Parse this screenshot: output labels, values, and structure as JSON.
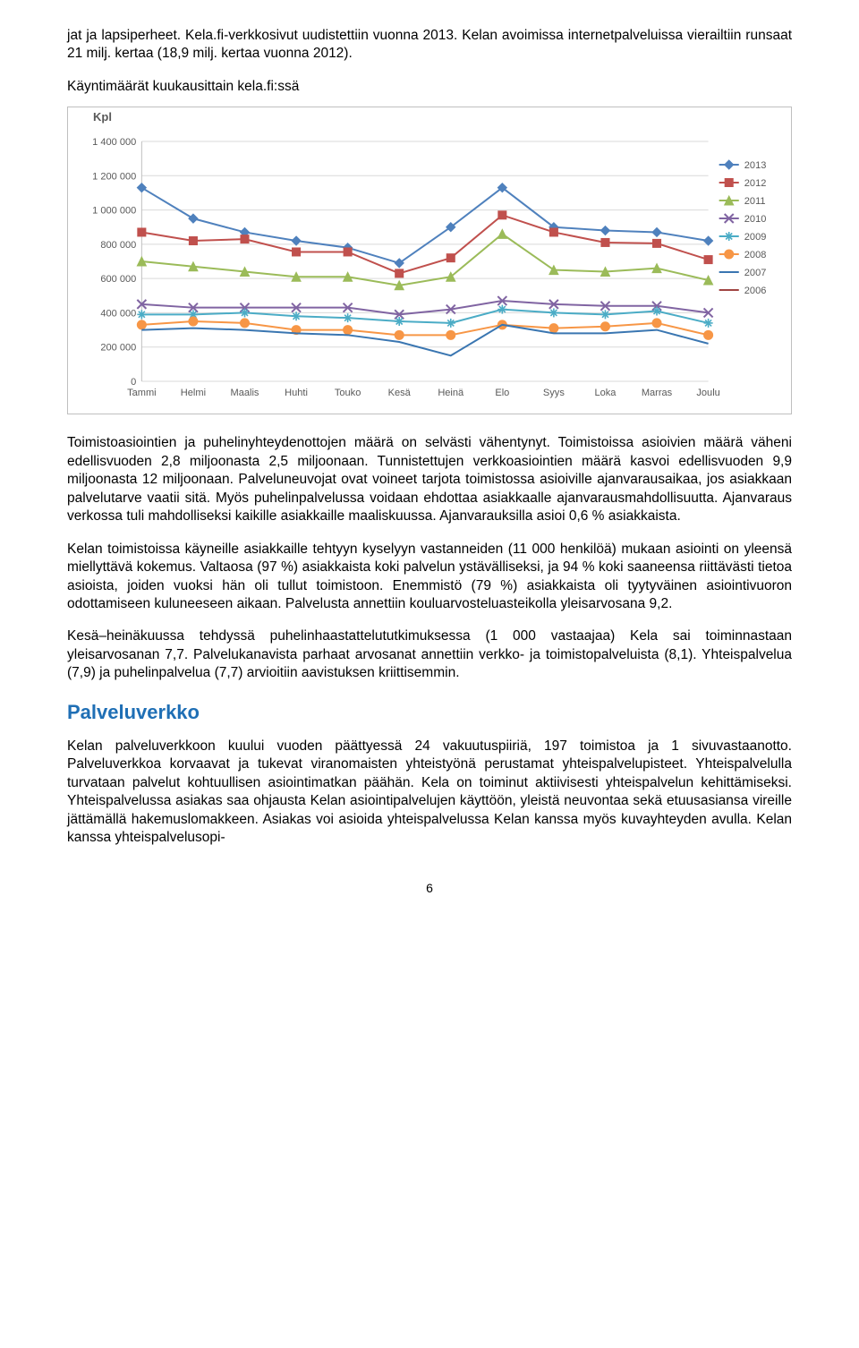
{
  "para1": "jat ja lapsiperheet. Kela.fi-verkkosivut uudistettiin vuonna 2013. Kelan avoimissa internetpalveluissa vierailtiin runsaat 21 milj. kertaa (18,9 milj. kertaa vuonna 2012).",
  "chartTitle": "Käyntimäärät kuukausittain kela.fi:ssä",
  "chart": {
    "type": "line",
    "y_axis_title": "Kpl",
    "xlabels": [
      "Tammi",
      "Helmi",
      "Maalis",
      "Huhti",
      "Touko",
      "Kesä",
      "Heinä",
      "Elo",
      "Syys",
      "Loka",
      "Marras",
      "Joulu"
    ],
    "ylim": [
      0,
      1400000
    ],
    "ytick_step": 200000,
    "yticks_labels": [
      "0",
      "200 000",
      "400 000",
      "600 000",
      "800 000",
      "1 000 000",
      "1 200 000",
      "1 400 000"
    ],
    "grid_color": "#d9d9d9",
    "axis_color": "#bfbfbf",
    "background_color": "#ffffff",
    "label_fontsize": 11,
    "label_color": "#595959",
    "line_width": 2,
    "marker_size": 5,
    "series": [
      {
        "name": "2013",
        "color": "#4f81bd",
        "marker": "diamond",
        "values": [
          1130000,
          950000,
          870000,
          820000,
          780000,
          690000,
          900000,
          1130000,
          900000,
          880000,
          870000,
          820000
        ]
      },
      {
        "name": "2012",
        "color": "#c0504d",
        "marker": "square",
        "values": [
          870000,
          820000,
          830000,
          755000,
          755000,
          630000,
          720000,
          970000,
          870000,
          810000,
          805000,
          710000
        ]
      },
      {
        "name": "2011",
        "color": "#9bbb59",
        "marker": "triangle",
        "values": [
          700000,
          670000,
          640000,
          610000,
          610000,
          560000,
          610000,
          860000,
          650000,
          640000,
          660000,
          590000
        ]
      },
      {
        "name": "2010",
        "color": "#8064a2",
        "marker": "x",
        "values": [
          450000,
          430000,
          430000,
          430000,
          430000,
          390000,
          420000,
          470000,
          450000,
          440000,
          440000,
          400000
        ]
      },
      {
        "name": "2009",
        "color": "#4bacc6",
        "marker": "asterisk",
        "values": [
          390000,
          390000,
          400000,
          380000,
          370000,
          350000,
          340000,
          420000,
          400000,
          390000,
          410000,
          340000
        ]
      },
      {
        "name": "2008",
        "color": "#f79646",
        "marker": "circle",
        "values": [
          330000,
          350000,
          340000,
          300000,
          300000,
          270000,
          270000,
          330000,
          310000,
          320000,
          340000,
          270000
        ]
      },
      {
        "name": "2007",
        "color": "#3a76b1",
        "marker": "none",
        "values": [
          300000,
          310000,
          300000,
          280000,
          270000,
          230000,
          150000,
          330000,
          280000,
          280000,
          300000,
          220000
        ]
      },
      {
        "name": "2006",
        "color": "#a04442",
        "marker": "none",
        "values": null
      }
    ],
    "legend_position": "right",
    "aspect_ratio": "wide"
  },
  "para2": "Toimistoasiointien ja puhelinyhteydenottojen määrä on selvästi vähentynyt. Toimistoissa asioivien määrä väheni edellisvuoden 2,8 miljoonasta 2,5 miljoonaan. Tunnistettujen verkkoasiointien määrä kasvoi edellisvuoden 9,9 miljoonasta 12 miljoonaan. Palveluneuvojat ovat voineet tarjota toimistossa asioiville ajanvarausaikaa, jos asiakkaan palvelutarve vaatii sitä. Myös puhelinpalvelussa voidaan ehdottaa asiakkaalle ajanvarausmahdollisuutta. Ajanvaraus verkossa tuli mahdolliseksi kaikille asiakkaille maaliskuussa. Ajanvarauksilla asioi 0,6 % asiakkaista.",
  "para3": "Kelan toimistoissa käyneille asiakkaille tehtyyn kyselyyn vastanneiden (11 000 henkilöä) mukaan asiointi on yleensä miellyttävä kokemus. Valtaosa (97 %) asiakkaista koki palvelun ystävälliseksi, ja 94 % koki saaneensa riittävästi tietoa asioista, joiden vuoksi hän oli tullut toimistoon. Enemmistö (79 %) asiakkaista oli tyytyväinen asiointivuoron odottamiseen kuluneeseen aikaan. Palvelusta annettiin kouluarvosteluasteikolla yleisarvosana 9,2.",
  "para4": "Kesä–heinäkuussa tehdyssä puhelinhaastattelututkimuksessa (1 000 vastaajaa) Kela sai toiminnastaan yleisarvosanan 7,7. Palvelukanavista parhaat arvosanat annettiin verkko- ja toimistopalveluista (8,1). Yhteispalvelua (7,9) ja puhelinpalvelua (7,7) arvioitiin aavistuksen kriittisemmin.",
  "heading1": "Palveluverkko",
  "para5": "Kelan palveluverkkoon kuului vuoden päättyessä 24 vakuutuspiiriä, 197 toimistoa ja 1 sivuvastaanotto. Palveluverkkoa korvaavat ja tukevat viranomaisten yhteistyönä perustamat yhteispalvelupisteet. Yhteispalvelulla turvataan palvelut kohtuullisen asiointimatkan päähän. Kela on toiminut aktiivisesti yhteispalvelun kehittämiseksi. Yhteispalvelussa asiakas saa ohjausta Kelan asiointipalvelujen käyttöön, yleistä neuvontaa sekä etuusasiansa vireille jättämällä hakemuslomakkeen. Asiakas voi asioida yhteispalvelussa Kelan kanssa myös kuvayhteyden avulla. Kelan kanssa yhteispalvelusopi-",
  "pageNumber": "6"
}
